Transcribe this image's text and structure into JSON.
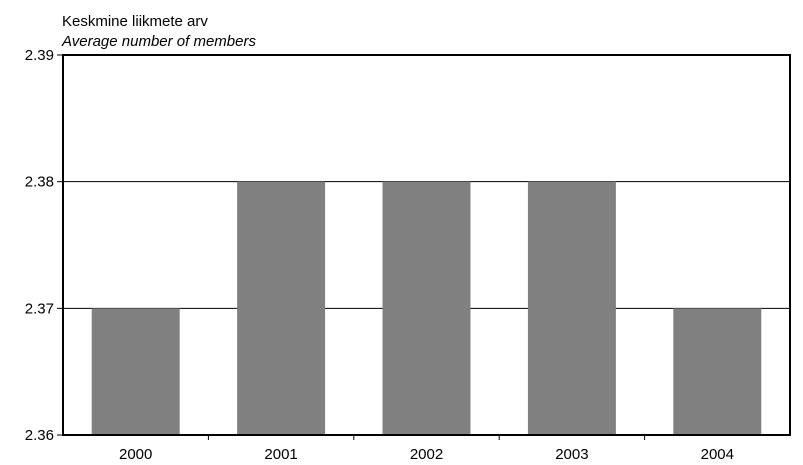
{
  "chart_data": {
    "type": "bar",
    "title": "Keskmine liikmete arv",
    "subtitle": "Average number of members",
    "xlabel": "",
    "ylabel": "",
    "categories": [
      "2000",
      "2001",
      "2002",
      "2003",
      "2004"
    ],
    "values": [
      2.37,
      2.38,
      2.38,
      2.38,
      2.37
    ],
    "ylim": [
      2.36,
      2.39
    ],
    "yticks": [
      2.36,
      2.37,
      2.38,
      2.39
    ],
    "ytick_labels": [
      "2.36",
      "2.37",
      "2.38",
      "2.39"
    ],
    "grid": true,
    "legend": "none",
    "bar_color": "#808080"
  }
}
